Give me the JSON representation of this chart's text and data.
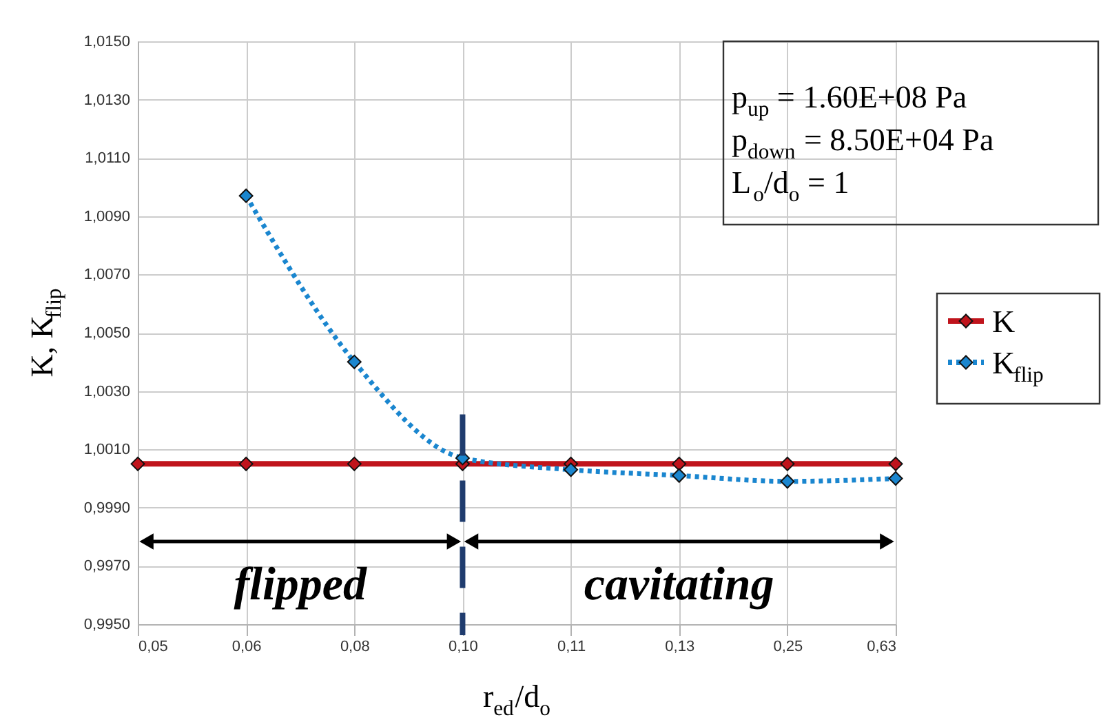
{
  "chart_data": {
    "type": "line",
    "xlabel": "r$_{ed}$/d$_{o}$",
    "ylabel": "K, K$_{flip}$",
    "categories": [
      "0,05",
      "0,06",
      "0,08",
      "0,10",
      "0,11",
      "0,13",
      "0,25",
      "0,63"
    ],
    "series": [
      {
        "name": "K",
        "color": "#c0141c",
        "line_style": "solid",
        "values": [
          1.0005,
          1.0005,
          1.0005,
          1.0005,
          1.0005,
          1.0005,
          1.0005,
          1.0005
        ]
      },
      {
        "name": "K$_{flip}$",
        "color": "#1a86cf",
        "line_style": "dotted",
        "values": [
          null,
          1.0097,
          1.004,
          1.0007,
          1.0003,
          1.0001,
          0.9999,
          1.0
        ]
      }
    ],
    "ylim": [
      0.995,
      1.015
    ],
    "yticks": [
      {
        "value": 0.995,
        "label": "0,9950"
      },
      {
        "value": 0.997,
        "label": "0,9970"
      },
      {
        "value": 0.999,
        "label": "0,9990"
      },
      {
        "value": 1.001,
        "label": "1,0010"
      },
      {
        "value": 1.003,
        "label": "1,0030"
      },
      {
        "value": 1.005,
        "label": "1,0050"
      },
      {
        "value": 1.007,
        "label": "1,0070"
      },
      {
        "value": 1.009,
        "label": "1,0090"
      },
      {
        "value": 1.011,
        "label": "1,0110"
      },
      {
        "value": 1.013,
        "label": "1,0130"
      },
      {
        "value": 1.015,
        "label": "1,0150"
      }
    ],
    "ref_lines": [
      {
        "axis": "x",
        "value": "0,10",
        "color": "#1f3c6e",
        "line_style": "dashed"
      }
    ],
    "annotations": [
      "p$_{up}$ = 1.60E+08 Pa",
      "p$_{down}$ = 8.50E+04 Pa",
      "L$_{o}$/d$_{o}$ = 1",
      "flipped",
      "cavitating"
    ],
    "grid": true,
    "legend": "right",
    "marker": "diamond"
  }
}
